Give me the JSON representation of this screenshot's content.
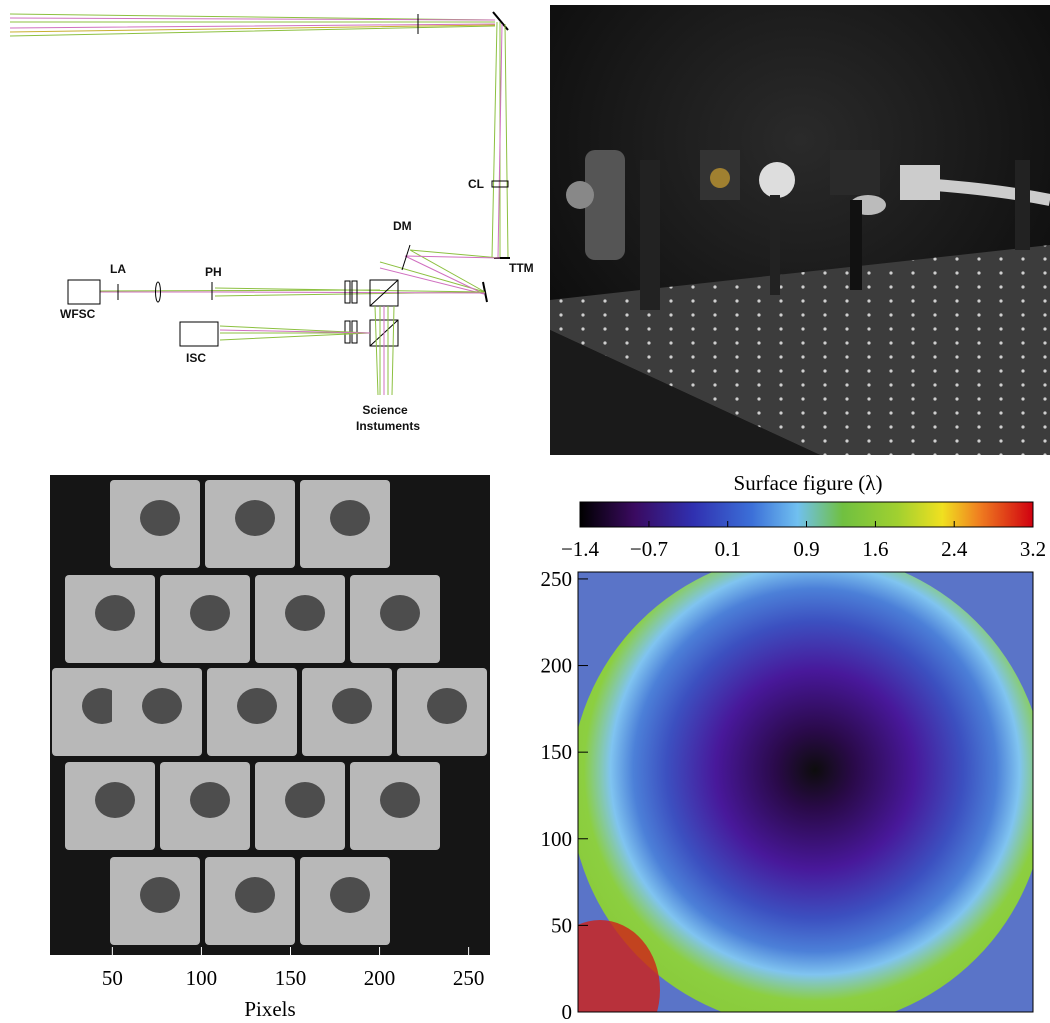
{
  "diagram": {
    "labels": {
      "la": "LA",
      "ph": "PH",
      "wfsc": "WFSC",
      "isc": "ISC",
      "dm": "DM",
      "cl": "CL",
      "ttm": "TTM",
      "science": "Science",
      "instruments": "Instuments"
    }
  },
  "pixel_image": {
    "xlabel": "Pixels",
    "xlim": [
      15,
      262
    ],
    "xticks": [
      50,
      100,
      150,
      200,
      250
    ]
  },
  "surface_map": {
    "title": "Surface figure (λ)",
    "colorbar_lim": [
      -1.4,
      3.2
    ],
    "colorbar_ticks": [
      {
        "value": -1.4,
        "label": "−1.4"
      },
      {
        "value": -0.7,
        "label": "−0.7"
      },
      0.1,
      0.9,
      1.6,
      2.4,
      3.2
    ],
    "ylim": [
      0,
      254
    ],
    "yticks": [
      0,
      50,
      100,
      150,
      200,
      250
    ]
  }
}
